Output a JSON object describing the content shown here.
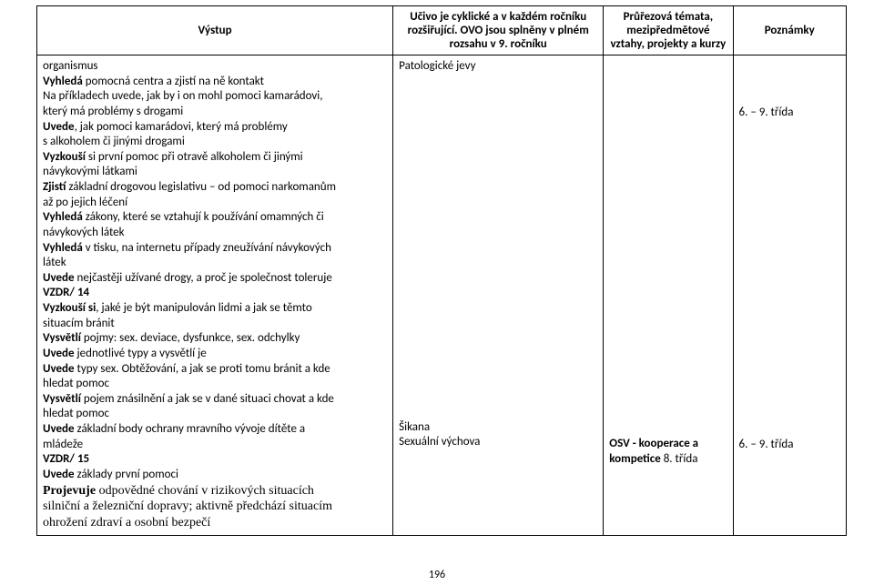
{
  "header": {
    "col1": "Výstup",
    "col2": "Učivo je cyklické a v každém ročníku rozšiřující. OVO jsou splněny v plném rozsahu v 9. ročníku",
    "col3": "Průřezová témata, mezipředmětové vztahy, projekty a kurzy",
    "col4": "Poznámky"
  },
  "col1": {
    "lines": [
      {
        "t": "organismus"
      },
      {
        "t": "<b>Vyhledá</b> pomocná centra a zjistí na ně kontakt"
      },
      {
        "t": "Na příkladech uvede, jak by i on mohl pomoci kamarádovi,"
      },
      {
        "t": "který má problémy s drogami"
      },
      {
        "t": "<b>Uvede</b>, jak pomoci kamarádovi, který má problémy"
      },
      {
        "t": "s alkoholem či jinými drogami"
      },
      {
        "t": "<b>Vyzkouší</b> si první pomoc při otravě alkoholem či jinými"
      },
      {
        "t": "návykovými látkami"
      },
      {
        "t": "<b>Zjistí</b> základní drogovou legislativu – od pomoci narkomanům"
      },
      {
        "t": "až po jejich léčení"
      },
      {
        "t": "<b>Vyhledá</b> zákony, které se vztahují k používání omamných či"
      },
      {
        "t": "návykových látek"
      },
      {
        "t": "<b>Vyhledá</b> v tisku, na internetu případy zneužívání návykových"
      },
      {
        "t": "látek"
      },
      {
        "t": "<b>Uvede</b> nejčastěji užívané drogy, a proč je společnost toleruje"
      },
      {
        "t": "<b>VZDR/ 14</b>"
      },
      {
        "t": "<b>Vyzkouší si</b>, jaké je být manipulován lidmi a jak se těmto"
      },
      {
        "t": "situacím bránit"
      },
      {
        "t": "<b>Vysvětlí</b> pojmy: sex. deviace, dysfunkce, sex. odchylky"
      },
      {
        "t": "<b>Uvede</b> jednotlivé typy a vysvětlí je"
      },
      {
        "t": "<b>Uvede</b> typy sex. Obtěžování, a jak se proti tomu bránit a kde"
      },
      {
        "t": "hledat pomoc"
      },
      {
        "t": "<b>Vysvětlí</b> pojem znásilnění a jak se v dané situaci chovat a kde"
      },
      {
        "t": "hledat pomoc"
      },
      {
        "t": "<b>Uvede</b> základní body ochrany mravního vývoje dítěte a"
      },
      {
        "t": "mládeže"
      },
      {
        "t": "<b>VZDR/ 15</b>"
      },
      {
        "t": "<b>Uvede</b> základy první pomoci"
      },
      {
        "t": "<b>Projevuje</b> odpovědné chování v rizikových situacích",
        "serif": true
      },
      {
        "t": "silniční a železniční dopravy; aktivně předchází situacím",
        "serif": true
      },
      {
        "t": "ohrožení zdraví a osobní bezpečí",
        "serif": true
      }
    ]
  },
  "col2": {
    "top": "Patologické jevy",
    "mid1": "Šikana",
    "mid2": "Sexuální výchova"
  },
  "col3": {
    "osv_label": "OSV - kooperace a",
    "osv_label2": "kompetice",
    "osv_class": "8. třída"
  },
  "col4": {
    "top_note": "6. – 9. třída",
    "bottom_note": "6. – 9. třída"
  },
  "page_number": "196",
  "style": {
    "font_family": "Calibri",
    "font_size_pt": 10,
    "border_color": "#000000",
    "background_color": "#ffffff",
    "text_color": "#000000"
  }
}
